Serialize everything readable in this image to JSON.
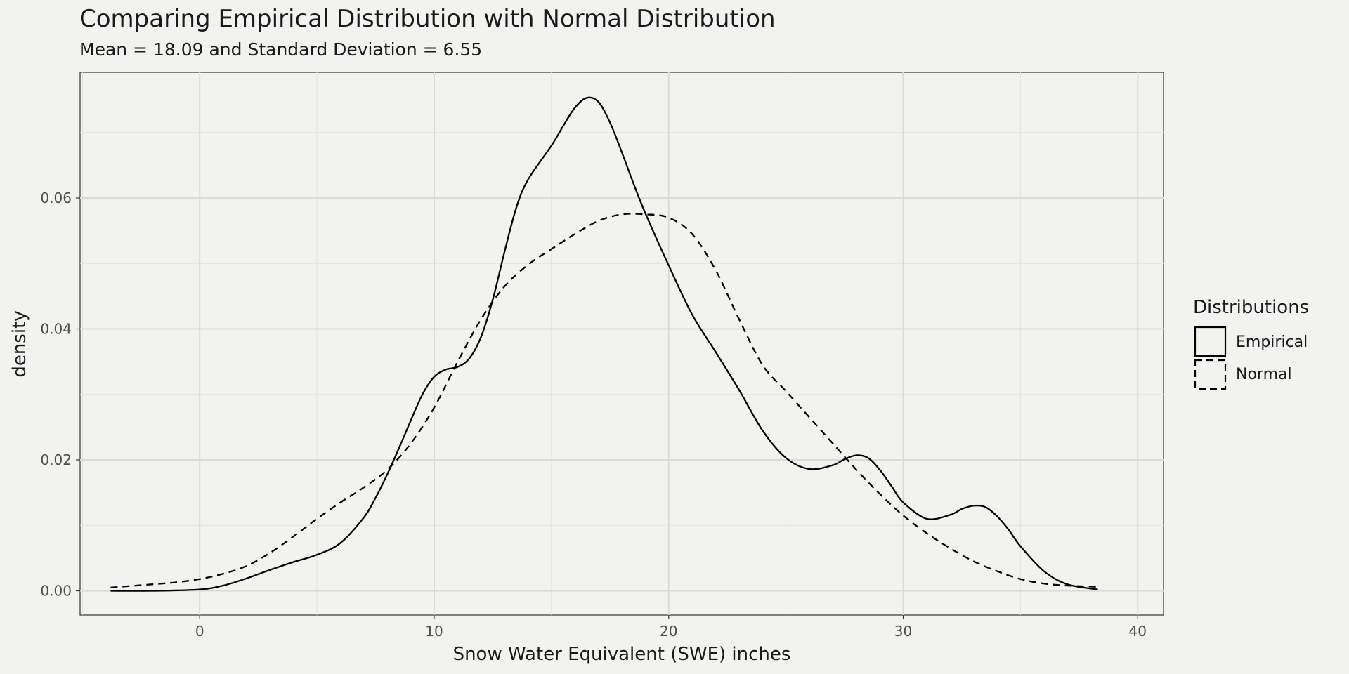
{
  "chart_data": {
    "type": "line",
    "title": "Comparing Empirical Distribution with Normal Distribution",
    "subtitle": "Mean = 18.09 and Standard Deviation = 6.55",
    "xlabel": "Snow Water Equivalent (SWE) inches",
    "ylabel": "density",
    "xlim": [
      -5.1,
      41.1
    ],
    "ylim": [
      -0.0037,
      0.0792
    ],
    "x_ticks": [
      0,
      10,
      20,
      30,
      40
    ],
    "x_tick_labels": [
      "0",
      "10",
      "20",
      "30",
      "40"
    ],
    "y_ticks": [
      0.0,
      0.02,
      0.04,
      0.06
    ],
    "y_tick_labels": [
      "0.00",
      "0.02",
      "0.04",
      "0.06"
    ],
    "grid": true,
    "legend": {
      "title": "Distributions",
      "position": "right"
    },
    "series": [
      {
        "name": "Empirical",
        "line_style": "solid",
        "color": "#000000",
        "x": [
          -3.8,
          -2,
          0,
          1,
          2,
          3,
          4,
          5,
          6,
          7,
          7.5,
          8,
          8.5,
          9,
          9.5,
          10,
          10.5,
          11,
          11.5,
          12,
          12.5,
          13,
          13.5,
          14,
          15,
          15.5,
          16,
          16.5,
          17,
          17.5,
          18,
          18.5,
          19,
          20,
          21,
          22,
          23,
          24,
          25,
          26,
          27,
          27.5,
          28,
          28.5,
          29,
          29.5,
          30,
          31,
          32,
          32.5,
          33,
          33.5,
          34,
          34.5,
          35,
          36,
          37,
          38.3
        ],
        "values": [
          0.0,
          0.0,
          0.0002,
          0.0008,
          0.0019,
          0.0032,
          0.0044,
          0.0055,
          0.0073,
          0.0112,
          0.0142,
          0.0178,
          0.0218,
          0.026,
          0.03,
          0.0327,
          0.0338,
          0.0342,
          0.0355,
          0.0388,
          0.0445,
          0.0518,
          0.0585,
          0.0628,
          0.068,
          0.071,
          0.0738,
          0.0753,
          0.0747,
          0.0715,
          0.067,
          0.0622,
          0.0577,
          0.0497,
          0.0422,
          0.0365,
          0.0307,
          0.0245,
          0.0203,
          0.0186,
          0.0192,
          0.0201,
          0.0207,
          0.0203,
          0.0185,
          0.016,
          0.0135,
          0.011,
          0.0116,
          0.0125,
          0.013,
          0.0128,
          0.0114,
          0.0093,
          0.0068,
          0.003,
          0.001,
          0.0002
        ]
      },
      {
        "name": "Normal",
        "line_style": "dashed",
        "color": "#000000",
        "x": [
          -3.8,
          -2,
          -1,
          0,
          1,
          2,
          3,
          4,
          5,
          6,
          7,
          8,
          9,
          10,
          11,
          12,
          13,
          14,
          15,
          16,
          17,
          18,
          19,
          20,
          21,
          22,
          23,
          24,
          25,
          26,
          27,
          28,
          29,
          30,
          31,
          32,
          33,
          34,
          35,
          36,
          37,
          38.3
        ],
        "values": [
          0.0005,
          0.001,
          0.0013,
          0.0018,
          0.0026,
          0.0038,
          0.0058,
          0.0083,
          0.011,
          0.0135,
          0.0158,
          0.0185,
          0.0225,
          0.028,
          0.035,
          0.0415,
          0.0465,
          0.0498,
          0.0522,
          0.0545,
          0.0565,
          0.0575,
          0.0575,
          0.057,
          0.0545,
          0.049,
          0.0415,
          0.0345,
          0.0305,
          0.0265,
          0.0225,
          0.0185,
          0.0148,
          0.0115,
          0.0088,
          0.0065,
          0.0045,
          0.003,
          0.0018,
          0.0011,
          0.0008,
          0.0006
        ]
      }
    ]
  }
}
